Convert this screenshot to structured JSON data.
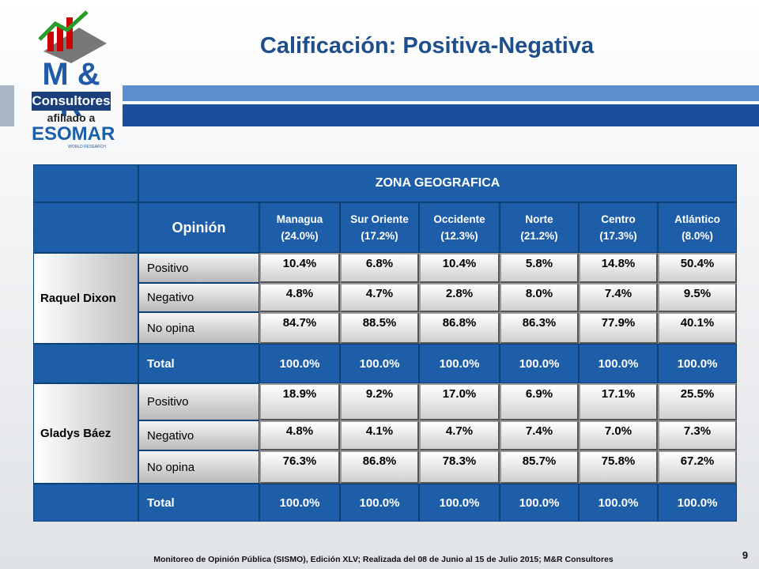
{
  "header": {
    "title": "Calificación: Positiva-Negativa"
  },
  "logo": {
    "brand": "M & R",
    "name": "Consultores",
    "affiliation": "afiliado a",
    "partner": "ESOMAR",
    "partner_sub": "WORLD RESEARCH"
  },
  "table": {
    "zone_header": "ZONA GEOGRAFICA",
    "opinion_header": "Opinión",
    "columns": [
      {
        "name": "Managua",
        "share": "(24.0%)"
      },
      {
        "name": "Sur Oriente",
        "share": "(17.2%)"
      },
      {
        "name": "Occidente",
        "share": "(12.3%)"
      },
      {
        "name": "Norte",
        "share": "(21.2%)"
      },
      {
        "name": "Centro",
        "share": "(17.3%)"
      },
      {
        "name": "Atlántico",
        "share": "(8.0%)"
      }
    ],
    "groups": [
      {
        "name": "Raquel Dixon",
        "rows": [
          {
            "label": "Positivo",
            "values": [
              "10.4%",
              "6.8%",
              "10.4%",
              "5.8%",
              "14.8%",
              "50.4%"
            ]
          },
          {
            "label": "Negativo",
            "values": [
              "4.8%",
              "4.7%",
              "2.8%",
              "8.0%",
              "7.4%",
              "9.5%"
            ]
          },
          {
            "label": "No opina",
            "values": [
              "84.7%",
              "88.5%",
              "86.8%",
              "86.3%",
              "77.9%",
              "40.1%"
            ]
          }
        ],
        "total": {
          "label": "Total",
          "values": [
            "100.0%",
            "100.0%",
            "100.0%",
            "100.0%",
            "100.0%",
            "100.0%"
          ]
        }
      },
      {
        "name": "Gladys Báez",
        "rows": [
          {
            "label": "Positivo",
            "values": [
              "18.9%",
              "9.2%",
              "17.0%",
              "6.9%",
              "17.1%",
              "25.5%"
            ]
          },
          {
            "label": "Negativo",
            "values": [
              "4.8%",
              "4.1%",
              "4.7%",
              "7.4%",
              "7.0%",
              "7.3%"
            ]
          },
          {
            "label": "No opina",
            "values": [
              "76.3%",
              "86.8%",
              "78.3%",
              "85.7%",
              "75.8%",
              "67.2%"
            ]
          }
        ],
        "total": {
          "label": "Total",
          "values": [
            "100.0%",
            "100.0%",
            "100.0%",
            "100.0%",
            "100.0%",
            "100.0%"
          ]
        }
      }
    ]
  },
  "footer": {
    "source": "Monitoreo de Opinión Pública (SISMO), Edición XLV; Realizada del 08 de Junio al 15 de Julio 2015; M&R Consultores",
    "page": "9"
  }
}
